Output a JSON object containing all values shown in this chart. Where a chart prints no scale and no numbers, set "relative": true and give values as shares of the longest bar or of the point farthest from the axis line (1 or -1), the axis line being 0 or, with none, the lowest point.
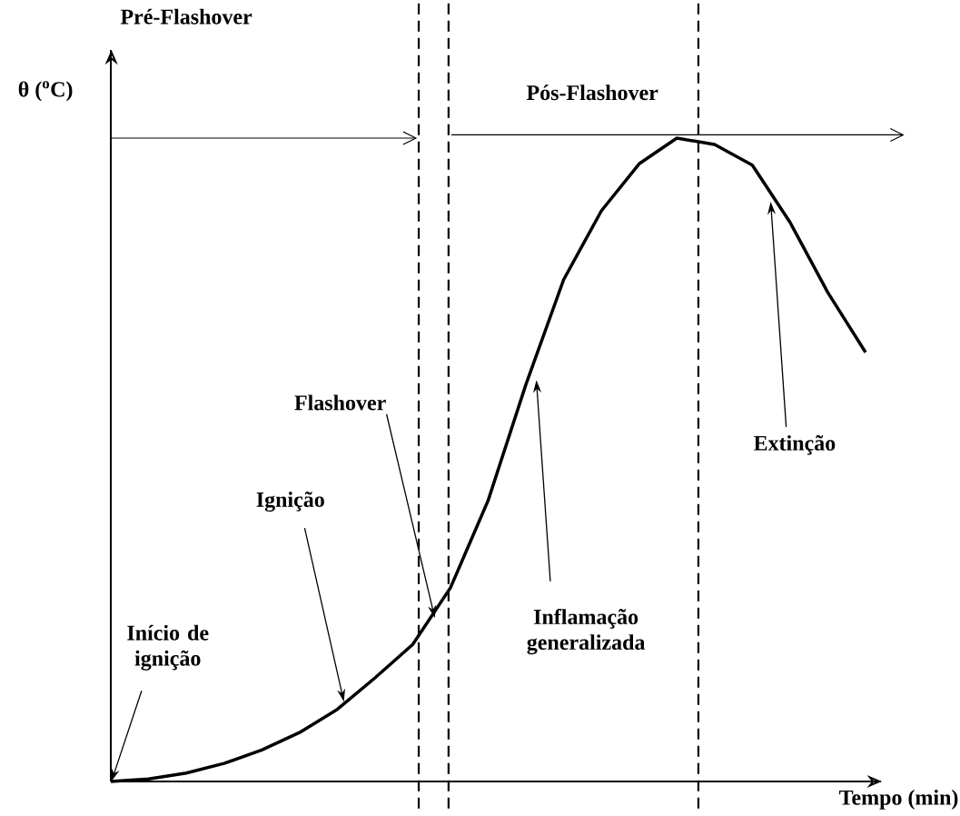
{
  "chart_data": {
    "type": "line",
    "relative": true,
    "xlabel": "Tempo (min)",
    "ylabel": "θ ($^{o}$C)",
    "categories": [
      null,
      null,
      null,
      null,
      null,
      null,
      null,
      null,
      null,
      null,
      null,
      null,
      null,
      null,
      null,
      null,
      null,
      null,
      null,
      null,
      null
    ],
    "values": [
      0,
      0.004,
      0.013,
      0.028,
      0.049,
      0.076,
      0.112,
      0.161,
      0.213,
      0.301,
      0.437,
      0.617,
      0.78,
      0.887,
      0.96,
      1,
      0.99,
      0.958,
      0.869,
      0.76,
      0.667
    ],
    "tick_labels": false,
    "color": "#000000",
    "marker": "none",
    "line_style": "solid",
    "annotations": [
      "Pré-Flashover",
      "Pós-Flashover",
      "Início de ignição",
      "Ignição",
      "Flashover",
      "Inflamação generalizada",
      "Extinção"
    ]
  }
}
